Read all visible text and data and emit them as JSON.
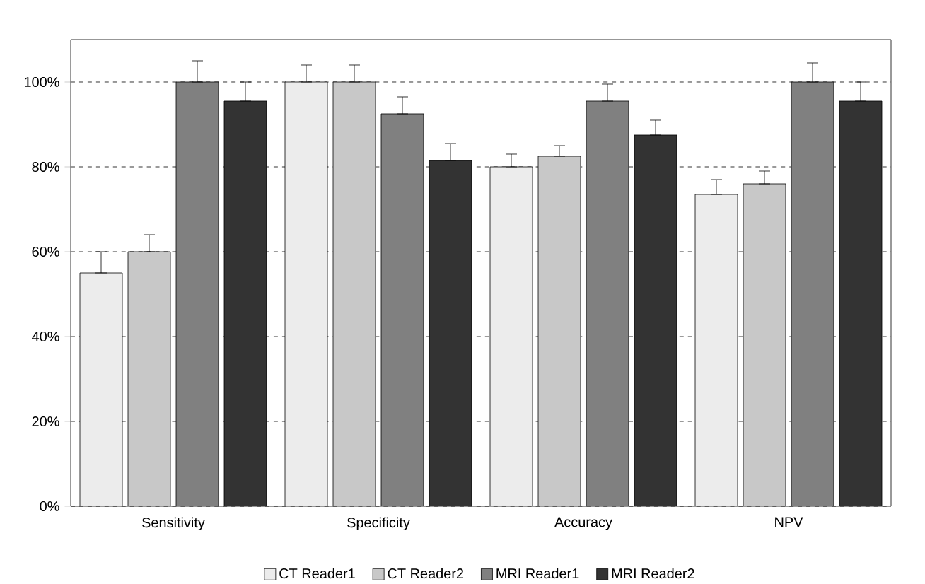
{
  "chart_data": {
    "type": "bar",
    "categories": [
      "Sensitivity",
      "Specificity",
      "Accuracy",
      "NPV"
    ],
    "series": [
      {
        "name": "CT Reader1",
        "color": "#ececec",
        "values": [
          55,
          100,
          80,
          73.5
        ],
        "errors": [
          [
            55,
            60
          ],
          [
            100,
            104
          ],
          [
            80,
            83
          ],
          [
            73.5,
            77
          ]
        ]
      },
      {
        "name": "CT Reader2",
        "color": "#c8c8c8",
        "values": [
          60,
          100,
          82.5,
          76
        ],
        "errors": [
          [
            60,
            64
          ],
          [
            100,
            104
          ],
          [
            82.5,
            85
          ],
          [
            76,
            79
          ]
        ]
      },
      {
        "name": "MRI Reader1",
        "color": "#808080",
        "values": [
          100,
          92.5,
          95.5,
          100
        ],
        "errors": [
          [
            100,
            105
          ],
          [
            92.5,
            96.5
          ],
          [
            95.5,
            99.5
          ],
          [
            100,
            104.5
          ]
        ]
      },
      {
        "name": "MRI Reader2",
        "color": "#333333",
        "values": [
          95.5,
          81.5,
          87.5,
          95.5
        ],
        "errors": [
          [
            95.5,
            100
          ],
          [
            81.5,
            85.5
          ],
          [
            87.5,
            91
          ],
          [
            95.5,
            100
          ]
        ]
      }
    ],
    "ylim": [
      0,
      110
    ],
    "yticks": [
      {
        "value": 0,
        "label": "0%"
      },
      {
        "value": 20,
        "label": "20%"
      },
      {
        "value": 40,
        "label": "40%"
      },
      {
        "value": 60,
        "label": "60%"
      },
      {
        "value": 80,
        "label": "80%"
      },
      {
        "value": 100,
        "label": "100%"
      }
    ],
    "grid": "y",
    "legend": "bottom"
  }
}
